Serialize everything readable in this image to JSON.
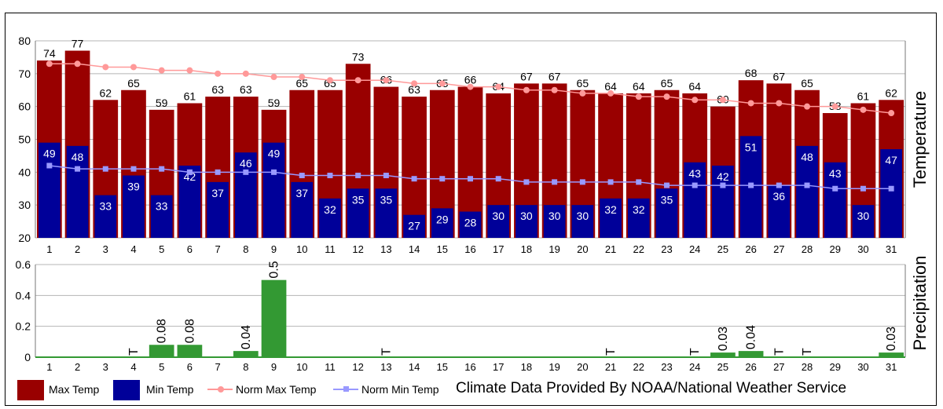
{
  "chart_data": [
    {
      "type": "bar",
      "ylabel": "Temperature",
      "ylim": [
        20,
        80
      ],
      "yticks": [
        "20",
        "30",
        "40",
        "50",
        "60",
        "70",
        "80"
      ],
      "categories": [
        "1",
        "2",
        "3",
        "4",
        "5",
        "6",
        "7",
        "8",
        "9",
        "10",
        "11",
        "12",
        "13",
        "14",
        "15",
        "16",
        "17",
        "18",
        "19",
        "20",
        "21",
        "22",
        "23",
        "24",
        "25",
        "26",
        "27",
        "28",
        "29",
        "30",
        "31"
      ],
      "series": [
        {
          "name": "Max Temp",
          "kind": "bar",
          "color": "#990000",
          "values": [
            74,
            77,
            62,
            65,
            59,
            61,
            63,
            63,
            59,
            65,
            65,
            73,
            66,
            63,
            65,
            66,
            64,
            67,
            67,
            65,
            64,
            64,
            65,
            64,
            60,
            68,
            67,
            65,
            58,
            61,
            62
          ]
        },
        {
          "name": "Min Temp",
          "kind": "bar",
          "color": "#000099",
          "values": [
            49,
            48,
            33,
            39,
            33,
            42,
            37,
            46,
            49,
            37,
            32,
            35,
            35,
            27,
            29,
            28,
            30,
            30,
            30,
            30,
            32,
            32,
            35,
            43,
            42,
            51,
            36,
            48,
            43,
            30,
            47
          ]
        },
        {
          "name": "Norm Max Temp",
          "kind": "line",
          "color": "#ff9999",
          "values": [
            73,
            73,
            72,
            72,
            71,
            71,
            70,
            70,
            69,
            69,
            68,
            68,
            68,
            67,
            67,
            66,
            66,
            65,
            65,
            64,
            64,
            63,
            63,
            62,
            62,
            61,
            61,
            60,
            60,
            59,
            58
          ]
        },
        {
          "name": "Norm Min Temp",
          "kind": "line",
          "color": "#9999ff",
          "values": [
            42,
            41,
            41,
            41,
            41,
            40,
            40,
            40,
            40,
            39,
            39,
            39,
            39,
            38,
            38,
            38,
            38,
            37,
            37,
            37,
            37,
            37,
            36,
            36,
            36,
            36,
            36,
            36,
            35,
            35,
            35
          ]
        }
      ],
      "grid": true
    },
    {
      "type": "bar",
      "ylabel": "Precipitation",
      "ylim": [
        0,
        0.6
      ],
      "yticks": [
        "0",
        "0.2",
        "0.4",
        "0.6"
      ],
      "categories": [
        "1",
        "2",
        "3",
        "4",
        "5",
        "6",
        "7",
        "8",
        "9",
        "10",
        "11",
        "12",
        "13",
        "14",
        "15",
        "16",
        "17",
        "18",
        "19",
        "20",
        "21",
        "22",
        "23",
        "24",
        "25",
        "26",
        "27",
        "28",
        "29",
        "30",
        "31"
      ],
      "series": [
        {
          "name": "Precipitation",
          "color": "#339933",
          "values": [
            0,
            0,
            0,
            0,
            0.08,
            0.08,
            0,
            0.04,
            0.5,
            0,
            0,
            0,
            0,
            0,
            0,
            0,
            0,
            0,
            0,
            0,
            0,
            0,
            0,
            0,
            0.03,
            0.04,
            0,
            0,
            0,
            0,
            0.03
          ],
          "labels": [
            "",
            "",
            "",
            "T",
            "0.08",
            "0.08",
            "",
            "0.04",
            "0.5",
            "",
            "",
            "",
            "T",
            "",
            "",
            "",
            "",
            "",
            "",
            "",
            "T",
            "",
            "",
            "T",
            "0.03",
            "0.04",
            "T",
            "T",
            "",
            "",
            "0.03"
          ]
        }
      ],
      "grid": true
    }
  ],
  "legend": [
    {
      "label": "Max Temp",
      "color": "#990000",
      "kind": "bar"
    },
    {
      "label": "Min Temp",
      "color": "#000099",
      "kind": "bar"
    },
    {
      "label": "Norm Max Temp",
      "color": "#ff9999",
      "kind": "line"
    },
    {
      "label": "Norm Min Temp",
      "color": "#9999ff",
      "kind": "line"
    }
  ],
  "credit": "Climate Data Provided By NOAA/National Weather Service"
}
